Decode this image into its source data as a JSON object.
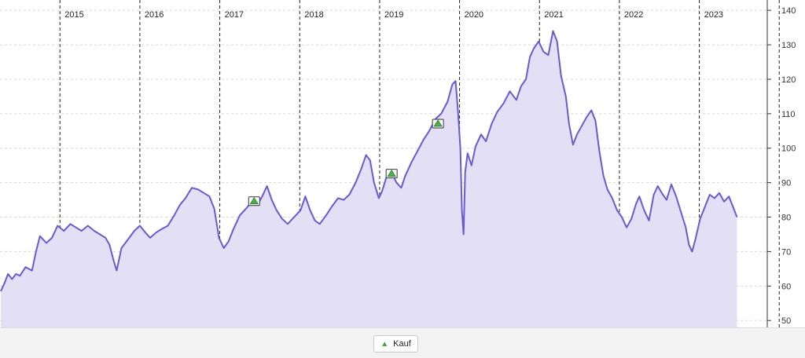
{
  "chart_data": {
    "type": "area",
    "title": "",
    "xlabel": "",
    "ylabel": "",
    "ylim": [
      48,
      143
    ],
    "xlim": [
      2014.1,
      2023.7
    ],
    "y_ticks": [
      50,
      60,
      70,
      80,
      90,
      100,
      110,
      120,
      130,
      140
    ],
    "year_markers": [
      {
        "x": 2014.85,
        "label": "2015"
      },
      {
        "x": 2015.85,
        "label": "2016"
      },
      {
        "x": 2016.85,
        "label": "2017"
      },
      {
        "x": 2017.85,
        "label": "2018"
      },
      {
        "x": 2018.85,
        "label": "2019"
      },
      {
        "x": 2019.85,
        "label": "2020"
      },
      {
        "x": 2020.85,
        "label": "2021"
      },
      {
        "x": 2021.85,
        "label": "2022"
      },
      {
        "x": 2022.85,
        "label": "2023"
      },
      {
        "x": 2023.85,
        "label": ""
      }
    ],
    "grid": true,
    "legend_position": "bottom-center",
    "colors": {
      "line": "#6a5acd",
      "fill": "#e3e0f6",
      "marker": "#4cae4c"
    },
    "series": [
      {
        "name": "",
        "points": [
          [
            2014.11,
            58.5
          ],
          [
            2014.15,
            60.5
          ],
          [
            2014.2,
            63.5
          ],
          [
            2014.25,
            62.0
          ],
          [
            2014.3,
            63.5
          ],
          [
            2014.35,
            63.0
          ],
          [
            2014.42,
            65.5
          ],
          [
            2014.5,
            64.5
          ],
          [
            2014.55,
            70.0
          ],
          [
            2014.6,
            74.5
          ],
          [
            2014.68,
            72.5
          ],
          [
            2014.75,
            74.0
          ],
          [
            2014.82,
            77.5
          ],
          [
            2014.9,
            76.0
          ],
          [
            2014.98,
            78.0
          ],
          [
            2015.05,
            77.0
          ],
          [
            2015.12,
            76.0
          ],
          [
            2015.2,
            77.5
          ],
          [
            2015.28,
            76.0
          ],
          [
            2015.35,
            75.0
          ],
          [
            2015.42,
            74.0
          ],
          [
            2015.47,
            72.0
          ],
          [
            2015.52,
            67.5
          ],
          [
            2015.56,
            64.5
          ],
          [
            2015.62,
            71.0
          ],
          [
            2015.7,
            73.5
          ],
          [
            2015.78,
            76.0
          ],
          [
            2015.85,
            77.5
          ],
          [
            2015.92,
            75.5
          ],
          [
            2015.98,
            74.0
          ],
          [
            2016.05,
            75.5
          ],
          [
            2016.12,
            76.5
          ],
          [
            2016.2,
            77.5
          ],
          [
            2016.28,
            80.5
          ],
          [
            2016.35,
            83.5
          ],
          [
            2016.42,
            85.5
          ],
          [
            2016.5,
            88.5
          ],
          [
            2016.58,
            88.0
          ],
          [
            2016.65,
            87.0
          ],
          [
            2016.72,
            86.0
          ],
          [
            2016.78,
            82.5
          ],
          [
            2016.84,
            74.0
          ],
          [
            2016.9,
            71.0
          ],
          [
            2016.96,
            73.0
          ],
          [
            2017.02,
            76.5
          ],
          [
            2017.1,
            80.5
          ],
          [
            2017.18,
            82.5
          ],
          [
            2017.25,
            84.5
          ],
          [
            2017.32,
            83.5
          ],
          [
            2017.38,
            86.0
          ],
          [
            2017.44,
            89.0
          ],
          [
            2017.5,
            85.0
          ],
          [
            2017.56,
            82.0
          ],
          [
            2017.63,
            79.5
          ],
          [
            2017.7,
            78.0
          ],
          [
            2017.78,
            80.0
          ],
          [
            2017.86,
            82.0
          ],
          [
            2017.92,
            86.0
          ],
          [
            2017.98,
            82.0
          ],
          [
            2018.04,
            79.0
          ],
          [
            2018.1,
            78.0
          ],
          [
            2018.18,
            80.5
          ],
          [
            2018.25,
            83.0
          ],
          [
            2018.33,
            85.5
          ],
          [
            2018.4,
            85.0
          ],
          [
            2018.47,
            86.5
          ],
          [
            2018.55,
            90.0
          ],
          [
            2018.62,
            94.0
          ],
          [
            2018.68,
            98.0
          ],
          [
            2018.73,
            96.5
          ],
          [
            2018.78,
            90.0
          ],
          [
            2018.84,
            85.5
          ],
          [
            2018.88,
            87.5
          ],
          [
            2018.94,
            92.0
          ],
          [
            2019.0,
            93.0
          ],
          [
            2019.06,
            90.0
          ],
          [
            2019.12,
            88.5
          ],
          [
            2019.17,
            92.0
          ],
          [
            2019.25,
            96.0
          ],
          [
            2019.32,
            99.0
          ],
          [
            2019.4,
            102.5
          ],
          [
            2019.47,
            105.0
          ],
          [
            2019.55,
            108.5
          ],
          [
            2019.62,
            110.0
          ],
          [
            2019.7,
            113.5
          ],
          [
            2019.76,
            118.5
          ],
          [
            2019.8,
            119.5
          ],
          [
            2019.83,
            111.0
          ],
          [
            2019.86,
            100.0
          ],
          [
            2019.88,
            82.0
          ],
          [
            2019.9,
            75.0
          ],
          [
            2019.92,
            93.0
          ],
          [
            2019.95,
            98.5
          ],
          [
            2020.0,
            95.0
          ],
          [
            2020.05,
            100.5
          ],
          [
            2020.12,
            104.0
          ],
          [
            2020.18,
            102.0
          ],
          [
            2020.25,
            107.0
          ],
          [
            2020.32,
            110.5
          ],
          [
            2020.4,
            113.0
          ],
          [
            2020.48,
            116.5
          ],
          [
            2020.56,
            114.0
          ],
          [
            2020.62,
            118.0
          ],
          [
            2020.68,
            120.0
          ],
          [
            2020.73,
            126.5
          ],
          [
            2020.78,
            129.0
          ],
          [
            2020.84,
            131.0
          ],
          [
            2020.9,
            128.0
          ],
          [
            2020.96,
            127.0
          ],
          [
            2021.02,
            134.0
          ],
          [
            2021.07,
            131.0
          ],
          [
            2021.12,
            121.0
          ],
          [
            2021.18,
            115.0
          ],
          [
            2021.22,
            107.0
          ],
          [
            2021.27,
            101.0
          ],
          [
            2021.32,
            104.0
          ],
          [
            2021.38,
            106.5
          ],
          [
            2021.44,
            109.0
          ],
          [
            2021.5,
            111.0
          ],
          [
            2021.55,
            108.0
          ],
          [
            2021.6,
            99.0
          ],
          [
            2021.65,
            92.0
          ],
          [
            2021.7,
            88.0
          ],
          [
            2021.76,
            85.5
          ],
          [
            2021.82,
            82.0
          ],
          [
            2021.88,
            80.0
          ],
          [
            2021.94,
            77.0
          ],
          [
            2022.0,
            79.5
          ],
          [
            2022.06,
            84.0
          ],
          [
            2022.1,
            86.0
          ],
          [
            2022.16,
            82.0
          ],
          [
            2022.22,
            79.0
          ],
          [
            2022.28,
            86.5
          ],
          [
            2022.33,
            89.0
          ],
          [
            2022.38,
            87.0
          ],
          [
            2022.44,
            85.0
          ],
          [
            2022.5,
            89.5
          ],
          [
            2022.56,
            86.0
          ],
          [
            2022.62,
            81.5
          ],
          [
            2022.68,
            77.0
          ],
          [
            2022.72,
            72.0
          ],
          [
            2022.76,
            70.0
          ],
          [
            2022.8,
            73.5
          ],
          [
            2022.86,
            79.5
          ],
          [
            2022.92,
            83.0
          ],
          [
            2022.98,
            86.5
          ],
          [
            2023.04,
            85.5
          ],
          [
            2023.1,
            87.0
          ],
          [
            2023.16,
            84.5
          ],
          [
            2023.22,
            86.0
          ],
          [
            2023.28,
            82.5
          ],
          [
            2023.32,
            80.0
          ]
        ]
      }
    ],
    "markers": [
      {
        "label": "Kauf",
        "x": 2017.28,
        "y": 84.5
      },
      {
        "label": "Kauf",
        "x": 2019.0,
        "y": 92.5
      },
      {
        "label": "Kauf",
        "x": 2019.58,
        "y": 107.0
      }
    ],
    "legend": [
      {
        "label": "Kauf",
        "symbol": "triangle-up"
      }
    ]
  }
}
